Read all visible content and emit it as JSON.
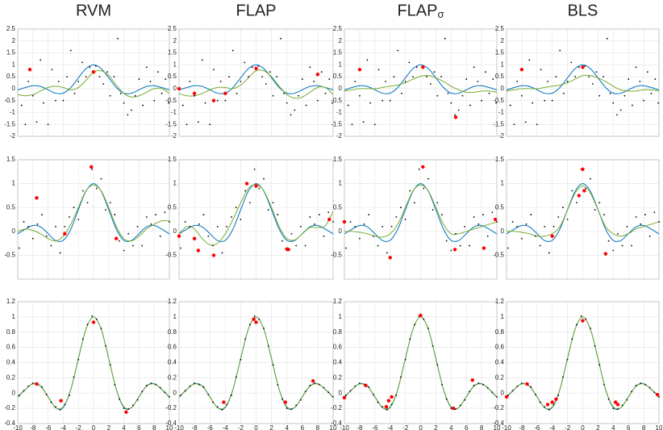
{
  "chart_data": [
    {
      "type": "line",
      "xlim": [
        -10,
        10
      ],
      "xticks": [
        -10,
        -8,
        -6,
        -4,
        -2,
        0,
        2,
        4,
        6,
        8,
        10
      ],
      "xtick_labels": false,
      "ylim": [
        -2,
        2.5
      ],
      "yticks": [
        -2,
        -1.5,
        -1,
        -0.5,
        0,
        0.5,
        1,
        1.5,
        2,
        2.5
      ],
      "grid": true,
      "x": [
        -10,
        -9,
        -8,
        -7,
        -6,
        -5,
        -4,
        -3,
        -2,
        -1,
        0,
        1,
        2,
        3,
        4,
        5,
        6,
        7,
        8,
        9,
        10
      ],
      "true_values": [
        -0.054,
        0.046,
        0.124,
        0.094,
        -0.047,
        -0.192,
        -0.189,
        0.047,
        0.455,
        0.841,
        1,
        0.841,
        0.455,
        0.047,
        -0.189,
        -0.192,
        -0.047,
        0.094,
        0.124,
        0.046,
        -0.054
      ],
      "true_color": "#0072bd",
      "points_color": "#000000",
      "fit_color": "#77ac30",
      "red_color": "#ff0000",
      "points_x": [
        -9.5,
        -9,
        -8.6,
        -8,
        -7.5,
        -7,
        -6.6,
        -6,
        -5.5,
        -5,
        -4.6,
        -4,
        -3.5,
        -3,
        -2.5,
        -2,
        -1.5,
        -1,
        -0.5,
        0.3,
        0.8,
        1.3,
        1.8,
        2.2,
        2.7,
        3.2,
        3.6,
        4,
        4.5,
        5,
        5.5,
        6,
        6.5,
        7,
        7.5,
        8,
        8.5,
        9,
        9.5,
        9.9
      ],
      "points_y": [
        -0.7,
        -1.5,
        0.3,
        -0.3,
        -1.4,
        1.2,
        -0.6,
        -1.5,
        0.8,
        -0.5,
        0.3,
        -0.5,
        0.5,
        1.6,
        -0.2,
        0.3,
        1.1,
        0.5,
        0.9,
        0.95,
        0.5,
        0.2,
        0.7,
        -0.3,
        0.5,
        2.1,
        -0.2,
        -0.6,
        -1.1,
        -0.9,
        -0.3,
        0.4,
        -0.7,
        0.9,
        0.3,
        -0.5,
        0.7,
        -0.2,
        0.4,
        -0.6
      ],
      "panels": [
        {
          "title": "RVM",
          "fit_values": [
            -0.25,
            -0.3,
            -0.25,
            -0.1,
            0.05,
            0.1,
            0.05,
            -0.05,
            0.05,
            0.35,
            0.7,
            0.75,
            0.55,
            0.15,
            -0.2,
            -0.35,
            -0.3,
            -0.15,
            0,
            0,
            -0.2
          ],
          "red_x": [
            -8.4,
            0
          ],
          "red_y": [
            0.8,
            0.7
          ]
        },
        {
          "title": "FLAP",
          "fit_values": [
            -0.2,
            -0.3,
            -0.3,
            -0.2,
            -0.05,
            0.05,
            0.05,
            0,
            0.15,
            0.45,
            0.75,
            0.75,
            0.5,
            0.1,
            -0.25,
            -0.4,
            -0.35,
            -0.15,
            0.05,
            0.05,
            -0.25
          ],
          "red_x": [
            -10,
            -8,
            -5.5,
            -4,
            0,
            8
          ],
          "red_y": [
            0,
            -0.2,
            -0.5,
            -0.2,
            0.85,
            0.6
          ]
        },
        {
          "title": "FLAP",
          "title_subscript": "σ",
          "fit_values": [
            -0.1,
            -0.05,
            0,
            0,
            0,
            0.05,
            0.1,
            0.15,
            0.25,
            0.4,
            0.52,
            0.55,
            0.45,
            0.3,
            0.1,
            -0.05,
            -0.15,
            -0.15,
            -0.1,
            -0.1,
            -0.15
          ],
          "red_x": [
            -8,
            0.3,
            4.6
          ],
          "red_y": [
            0.8,
            0.9,
            -1.2
          ]
        },
        {
          "title": "BLS",
          "fit_values": [
            -0.1,
            -0.05,
            0,
            0,
            0,
            0.05,
            0.1,
            0.15,
            0.25,
            0.4,
            0.55,
            0.55,
            0.45,
            0.3,
            0.1,
            -0.05,
            -0.1,
            -0.1,
            -0.05,
            -0.05,
            -0.1
          ],
          "red_x": [
            -8,
            0
          ],
          "red_y": [
            0.8,
            0.9
          ]
        }
      ]
    },
    {
      "type": "line",
      "xlim": [
        -10,
        10
      ],
      "xticks": [
        -10,
        -8,
        -6,
        -4,
        -2,
        0,
        2,
        4,
        6,
        8,
        10
      ],
      "xtick_labels": false,
      "ylim": [
        -1,
        1.5
      ],
      "yticks": [
        -0.5,
        0,
        0.5,
        1,
        1.5
      ],
      "grid": true,
      "x": [
        -10,
        -9,
        -8,
        -7,
        -6,
        -5,
        -4,
        -3,
        -2,
        -1,
        0,
        1,
        2,
        3,
        4,
        5,
        6,
        7,
        8,
        9,
        10
      ],
      "true_values": [
        -0.054,
        0.046,
        0.124,
        0.094,
        -0.047,
        -0.192,
        -0.189,
        0.047,
        0.455,
        0.841,
        1,
        0.841,
        0.455,
        0.047,
        -0.189,
        -0.192,
        -0.047,
        0.094,
        0.124,
        0.046,
        -0.054
      ],
      "true_color": "#0072bd",
      "points_color": "#000000",
      "fit_color": "#77ac30",
      "red_color": "#ff0000",
      "points_x": [
        -9.8,
        -9.2,
        -8.6,
        -8,
        -7.4,
        -6.8,
        -6.2,
        -5.6,
        -5,
        -4.4,
        -3.8,
        -3.2,
        -2.6,
        -2,
        -1.4,
        -0.8,
        -0.2,
        0.4,
        1,
        1.6,
        2.2,
        2.8,
        3.4,
        4,
        4.6,
        5.2,
        5.8,
        6.4,
        7,
        7.6,
        8.2,
        8.8,
        9.4,
        10
      ],
      "points_y": [
        -0.35,
        0.2,
        0.1,
        -0.15,
        0.15,
        0.35,
        -0.1,
        -0.3,
        0.1,
        -0.45,
        0.1,
        0.3,
        0.5,
        0.25,
        0.85,
        0.6,
        1.3,
        0.9,
        1.1,
        0.45,
        0.6,
        0.35,
        -0.2,
        -0.4,
        -0.05,
        -0.3,
        0.1,
        -0.3,
        0.3,
        0.15,
        0.35,
        -0.1,
        0.4,
        0.2
      ],
      "panels": [
        {
          "fit_values": [
            0,
            0.05,
            0.02,
            -0.05,
            -0.15,
            -0.2,
            -0.1,
            0.15,
            0.5,
            0.85,
            0.97,
            0.85,
            0.5,
            0.1,
            -0.15,
            -0.2,
            -0.1,
            0.05,
            0.15,
            0.22,
            0.22
          ],
          "red_x": [
            -7.5,
            -0.3,
            -3.8,
            3
          ],
          "red_y": [
            0.7,
            1.35,
            -0.05,
            -0.15
          ]
        },
        {
          "fit_values": [
            -0.05,
            0.1,
            0.05,
            -0.15,
            -0.28,
            -0.25,
            -0.05,
            0.25,
            0.6,
            0.9,
            0.98,
            0.85,
            0.5,
            0.1,
            -0.15,
            -0.18,
            -0.05,
            0.08,
            0.08,
            0.12,
            0.42
          ],
          "red_x": [
            -10,
            -8,
            -7.5,
            -5.5,
            -1.2,
            0,
            4,
            4.2,
            9.5
          ],
          "red_y": [
            -0.1,
            -0.15,
            -0.4,
            -0.5,
            1,
            0.95,
            -0.37,
            -0.38,
            0.25
          ]
        },
        {
          "fit_values": [
            0,
            0,
            -0.02,
            -0.05,
            -0.1,
            -0.12,
            -0.05,
            0.15,
            0.5,
            0.85,
            0.97,
            0.85,
            0.5,
            0.15,
            -0.05,
            -0.05,
            0,
            0.05,
            0.1,
            0.15,
            0.2
          ],
          "red_x": [
            -10,
            -4,
            0.3,
            4.5,
            8.3,
            9.8
          ],
          "red_y": [
            0.2,
            -0.55,
            1.35,
            -0.38,
            -0.35,
            0.25
          ]
        },
        {
          "fit_values": [
            0,
            0,
            -0.02,
            -0.05,
            -0.1,
            -0.1,
            -0.05,
            0.1,
            0.45,
            0.8,
            0.95,
            0.8,
            0.45,
            0.1,
            -0.05,
            -0.1,
            -0.05,
            0.05,
            0.1,
            0.15,
            0.2
          ],
          "red_x": [
            -4,
            -0.5,
            0,
            0.2,
            3
          ],
          "red_y": [
            -0.1,
            0.75,
            1.3,
            0.85,
            -0.47
          ]
        }
      ]
    },
    {
      "type": "line",
      "xlim": [
        -10,
        10
      ],
      "xticks": [
        -10,
        -8,
        -6,
        -4,
        -2,
        0,
        2,
        4,
        6,
        8,
        10
      ],
      "xtick_labels": true,
      "ylim": [
        -0.4,
        1.2
      ],
      "yticks": [
        -0.4,
        -0.2,
        0,
        0.2,
        0.4,
        0.6,
        0.8,
        1,
        1.2
      ],
      "grid": true,
      "x": [
        -10,
        -9,
        -8,
        -7,
        -6,
        -5,
        -4,
        -3,
        -2,
        -1,
        0,
        1,
        2,
        3,
        4,
        5,
        6,
        7,
        8,
        9,
        10
      ],
      "true_values": [
        -0.054,
        0.046,
        0.124,
        0.094,
        -0.047,
        -0.192,
        -0.189,
        0.047,
        0.455,
        0.841,
        1,
        0.841,
        0.455,
        0.047,
        -0.189,
        -0.192,
        -0.047,
        0.094,
        0.124,
        0.046,
        -0.054
      ],
      "true_color": "#0072bd",
      "points_color": "#000000",
      "fit_color": "#77ac30",
      "red_color": "#ff0000",
      "points_x": [
        -9.8,
        -9.2,
        -8.6,
        -8,
        -7.4,
        -6.8,
        -6.2,
        -5.6,
        -5,
        -4.4,
        -3.8,
        -3.2,
        -2.6,
        -2,
        -1.4,
        -0.8,
        -0.2,
        0.4,
        1,
        1.6,
        2.2,
        2.8,
        3.4,
        4,
        4.6,
        5.2,
        5.8,
        6.4,
        7,
        7.6,
        8.2,
        8.8,
        9.4,
        10
      ],
      "points_y": [
        -0.03,
        0.03,
        0.09,
        0.13,
        0.11,
        0.08,
        -0.02,
        -0.12,
        -0.18,
        -0.22,
        -0.15,
        -0.03,
        0.21,
        0.44,
        0.71,
        0.9,
        1.01,
        0.97,
        0.85,
        0.62,
        0.37,
        0.11,
        -0.08,
        -0.2,
        -0.21,
        -0.16,
        -0.09,
        0.02,
        0.1,
        0.13,
        0.11,
        0.07,
        0.01,
        -0.05
      ],
      "panels": [
        {
          "fit_values": [
            -0.05,
            0.05,
            0.12,
            0.09,
            -0.05,
            -0.19,
            -0.18,
            0.05,
            0.45,
            0.84,
            1,
            0.84,
            0.45,
            0.05,
            -0.18,
            -0.19,
            -0.05,
            0.09,
            0.12,
            0.05,
            -0.05
          ],
          "red_x": [
            -7.5,
            -4.3,
            0,
            4.3
          ],
          "red_y": [
            0.12,
            -0.1,
            0.93,
            -0.25
          ]
        },
        {
          "fit_values": [
            -0.05,
            0.05,
            0.12,
            0.09,
            -0.05,
            -0.19,
            -0.18,
            0.05,
            0.45,
            0.84,
            1,
            0.84,
            0.45,
            0.05,
            -0.18,
            -0.19,
            -0.05,
            0.09,
            0.12,
            0.05,
            -0.05
          ],
          "red_x": [
            -4.2,
            -0.3,
            0,
            3.8,
            7.4
          ],
          "red_y": [
            -0.12,
            0.97,
            0.93,
            -0.12,
            0.16
          ]
        },
        {
          "fit_values": [
            -0.05,
            0.05,
            0.12,
            0.09,
            -0.05,
            -0.19,
            -0.18,
            0.05,
            0.45,
            0.84,
            1,
            0.84,
            0.45,
            0.05,
            -0.18,
            -0.19,
            -0.05,
            0.09,
            0.12,
            0.05,
            -0.05
          ],
          "red_x": [
            -10,
            -7.2,
            -4.5,
            -4.2,
            -3.8,
            0,
            4.3,
            6.8
          ],
          "red_y": [
            -0.06,
            0.1,
            -0.18,
            -0.1,
            -0.05,
            1.02,
            -0.2,
            0.17
          ]
        },
        {
          "fit_values": [
            -0.05,
            0.05,
            0.12,
            0.09,
            -0.05,
            -0.19,
            -0.18,
            0.05,
            0.45,
            0.84,
            1,
            0.84,
            0.45,
            0.05,
            -0.18,
            -0.19,
            -0.05,
            0.09,
            0.12,
            0.05,
            -0.05
          ],
          "red_x": [
            -10,
            -7.3,
            -4.6,
            -4,
            -3.5,
            0,
            4.3,
            4.6,
            9.8
          ],
          "red_y": [
            -0.05,
            0.12,
            -0.15,
            -0.12,
            -0.08,
            0.95,
            -0.12,
            -0.15,
            -0.02
          ]
        }
      ]
    }
  ]
}
